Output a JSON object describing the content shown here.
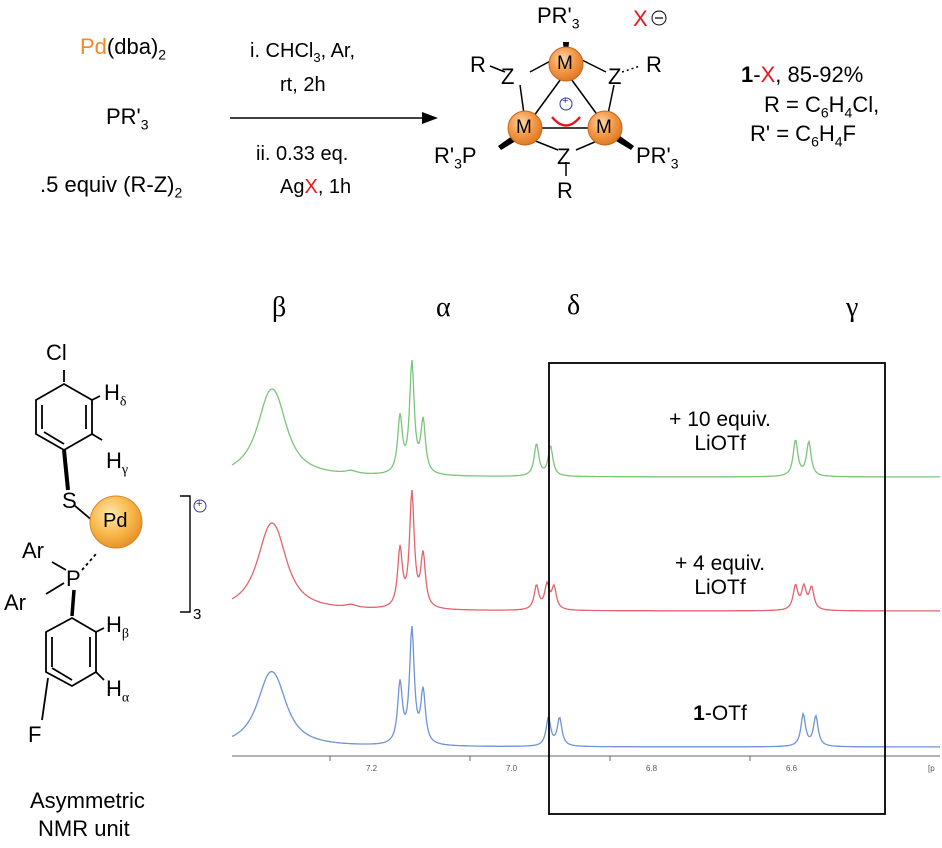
{
  "reaction": {
    "reagent1_metal": "Pd",
    "reagent1_rest": "(dba)",
    "reagent1_sub": "2",
    "reagent2": "PR'",
    "reagent2_sub": "3",
    "reagent3": ".5 equiv (R-Z)",
    "reagent3_sub": "2",
    "cond1_a": "i. CHCl",
    "cond1_sub": "3",
    "cond1_b": ", Ar,",
    "cond2": "rt, 2h",
    "cond3": "ii. 0.33 eq.",
    "cond4_a": "Ag",
    "cond4_x": "X",
    "cond4_b": ", 1h"
  },
  "cluster": {
    "metal_label": "M",
    "z_label": "Z",
    "r_label": "R",
    "top_ligand": "PR'",
    "top_ligand_sub": "3",
    "left_ligand_a": "R'",
    "left_ligand_sub": "3",
    "left_ligand_b": "P",
    "right_ligand": "PR'",
    "right_ligand_sub": "3",
    "anion": "X",
    "minus_sign": "⊖",
    "plus_sign": "+"
  },
  "product": {
    "compound_num": "1",
    "compound_x": "X",
    "yield": ", 85-92%",
    "r_def_a": "R = C",
    "r_def_sub1": "6",
    "r_def_b": "H",
    "r_def_sub2": "4",
    "r_def_c": "Cl,",
    "rp_def_a": "R' = C",
    "rp_def_sub1": "6",
    "rp_def_b": "H",
    "rp_def_sub2": "4",
    "rp_def_c": "F"
  },
  "nmr_unit": {
    "cl": "Cl",
    "h_delta": "H",
    "h_delta_sub": "δ",
    "h_gamma": "H",
    "h_gamma_sub": "γ",
    "s": "S",
    "pd": "Pd",
    "ar1": "Ar",
    "ar2": "Ar",
    "p": "P",
    "h_beta": "H",
    "h_beta_sub": "β",
    "h_alpha": "H",
    "h_alpha_sub": "α",
    "f": "F",
    "bracket_sub": "3",
    "charge": "+",
    "caption_line1": "Asymmetric",
    "caption_line2": "NMR unit"
  },
  "chart_data": {
    "type": "line",
    "x_unit": "ppm",
    "xlim": [
      7.35,
      6.38
    ],
    "x_ticks": [
      "7.2",
      "7.0",
      "6.8",
      "6.6",
      "[p"
    ],
    "x_tick_values": [
      7.2,
      7.0,
      6.8,
      6.6
    ],
    "peak_labels": [
      {
        "label": "β",
        "ppm": 7.28
      },
      {
        "label": "α",
        "ppm": 7.08
      },
      {
        "label": "δ",
        "ppm": 6.89
      },
      {
        "label": "γ",
        "ppm": 6.52
      }
    ],
    "series": [
      {
        "label_line1": "+ 10 equiv.",
        "label_line2": "LiOTf",
        "color": "#7cc47c"
      },
      {
        "label_line1": "+ 4 equiv.",
        "label_line2": "LiOTf",
        "color": "#e2646c"
      },
      {
        "label_bold": "1",
        "label_rest": "-OTf",
        "color": "#6f93d6"
      }
    ]
  }
}
